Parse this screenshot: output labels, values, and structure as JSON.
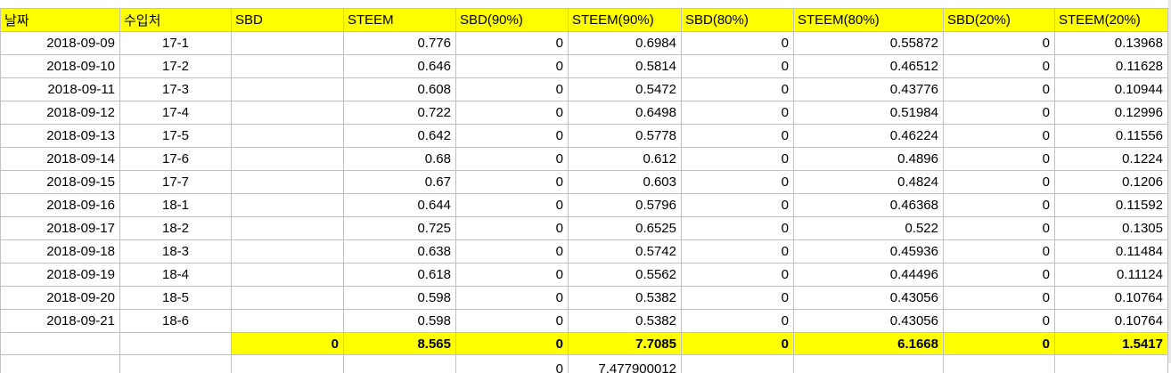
{
  "headers": [
    "날짜",
    "수입처",
    "SBD",
    "STEEM",
    "SBD(90%)",
    "STEEM(90%)",
    "SBD(80%)",
    "STEEM(80%)",
    "SBD(20%)",
    "STEEM(20%)"
  ],
  "rows": [
    {
      "date": "2018-09-09",
      "source": "17-1",
      "sbd": "",
      "steem": "0.776",
      "sbd90": "0",
      "steem90": "0.6984",
      "sbd80": "0",
      "steem80": "0.55872",
      "sbd20": "0",
      "steem20": "0.13968"
    },
    {
      "date": "2018-09-10",
      "source": "17-2",
      "sbd": "",
      "steem": "0.646",
      "sbd90": "0",
      "steem90": "0.5814",
      "sbd80": "0",
      "steem80": "0.46512",
      "sbd20": "0",
      "steem20": "0.11628"
    },
    {
      "date": "2018-09-11",
      "source": "17-3",
      "sbd": "",
      "steem": "0.608",
      "sbd90": "0",
      "steem90": "0.5472",
      "sbd80": "0",
      "steem80": "0.43776",
      "sbd20": "0",
      "steem20": "0.10944"
    },
    {
      "date": "2018-09-12",
      "source": "17-4",
      "sbd": "",
      "steem": "0.722",
      "sbd90": "0",
      "steem90": "0.6498",
      "sbd80": "0",
      "steem80": "0.51984",
      "sbd20": "0",
      "steem20": "0.12996"
    },
    {
      "date": "2018-09-13",
      "source": "17-5",
      "sbd": "",
      "steem": "0.642",
      "sbd90": "0",
      "steem90": "0.5778",
      "sbd80": "0",
      "steem80": "0.46224",
      "sbd20": "0",
      "steem20": "0.11556"
    },
    {
      "date": "2018-09-14",
      "source": "17-6",
      "sbd": "",
      "steem": "0.68",
      "sbd90": "0",
      "steem90": "0.612",
      "sbd80": "0",
      "steem80": "0.4896",
      "sbd20": "0",
      "steem20": "0.1224"
    },
    {
      "date": "2018-09-15",
      "source": "17-7",
      "sbd": "",
      "steem": "0.67",
      "sbd90": "0",
      "steem90": "0.603",
      "sbd80": "0",
      "steem80": "0.4824",
      "sbd20": "0",
      "steem20": "0.1206"
    },
    {
      "date": "2018-09-16",
      "source": "18-1",
      "sbd": "",
      "steem": "0.644",
      "sbd90": "0",
      "steem90": "0.5796",
      "sbd80": "0",
      "steem80": "0.46368",
      "sbd20": "0",
      "steem20": "0.11592"
    },
    {
      "date": "2018-09-17",
      "source": "18-2",
      "sbd": "",
      "steem": "0.725",
      "sbd90": "0",
      "steem90": "0.6525",
      "sbd80": "0",
      "steem80": "0.522",
      "sbd20": "0",
      "steem20": "0.1305"
    },
    {
      "date": "2018-09-18",
      "source": "18-3",
      "sbd": "",
      "steem": "0.638",
      "sbd90": "0",
      "steem90": "0.5742",
      "sbd80": "0",
      "steem80": "0.45936",
      "sbd20": "0",
      "steem20": "0.11484"
    },
    {
      "date": "2018-09-19",
      "source": "18-4",
      "sbd": "",
      "steem": "0.618",
      "sbd90": "0",
      "steem90": "0.5562",
      "sbd80": "0",
      "steem80": "0.44496",
      "sbd20": "0",
      "steem20": "0.11124"
    },
    {
      "date": "2018-09-20",
      "source": "18-5",
      "sbd": "",
      "steem": "0.598",
      "sbd90": "0",
      "steem90": "0.5382",
      "sbd80": "0",
      "steem80": "0.43056",
      "sbd20": "0",
      "steem20": "0.10764"
    },
    {
      "date": "2018-09-21",
      "source": "18-6",
      "sbd": "",
      "steem": "0.598",
      "sbd90": "0",
      "steem90": "0.5382",
      "sbd80": "0",
      "steem80": "0.43056",
      "sbd20": "0",
      "steem20": "0.10764"
    }
  ],
  "totals": {
    "sbd": "0",
    "steem": "8.565",
    "sbd90": "0",
    "steem90": "7.7085",
    "sbd80": "0",
    "steem80": "6.1668",
    "sbd20": "0",
    "steem20": "1.5417"
  },
  "partial_row": {
    "sbd90": "0",
    "steem90": "7.477900012"
  },
  "colors": {
    "header_fill": "#ffff00",
    "total_fill": "#ffff00",
    "gridline": "#c0c0c0"
  }
}
